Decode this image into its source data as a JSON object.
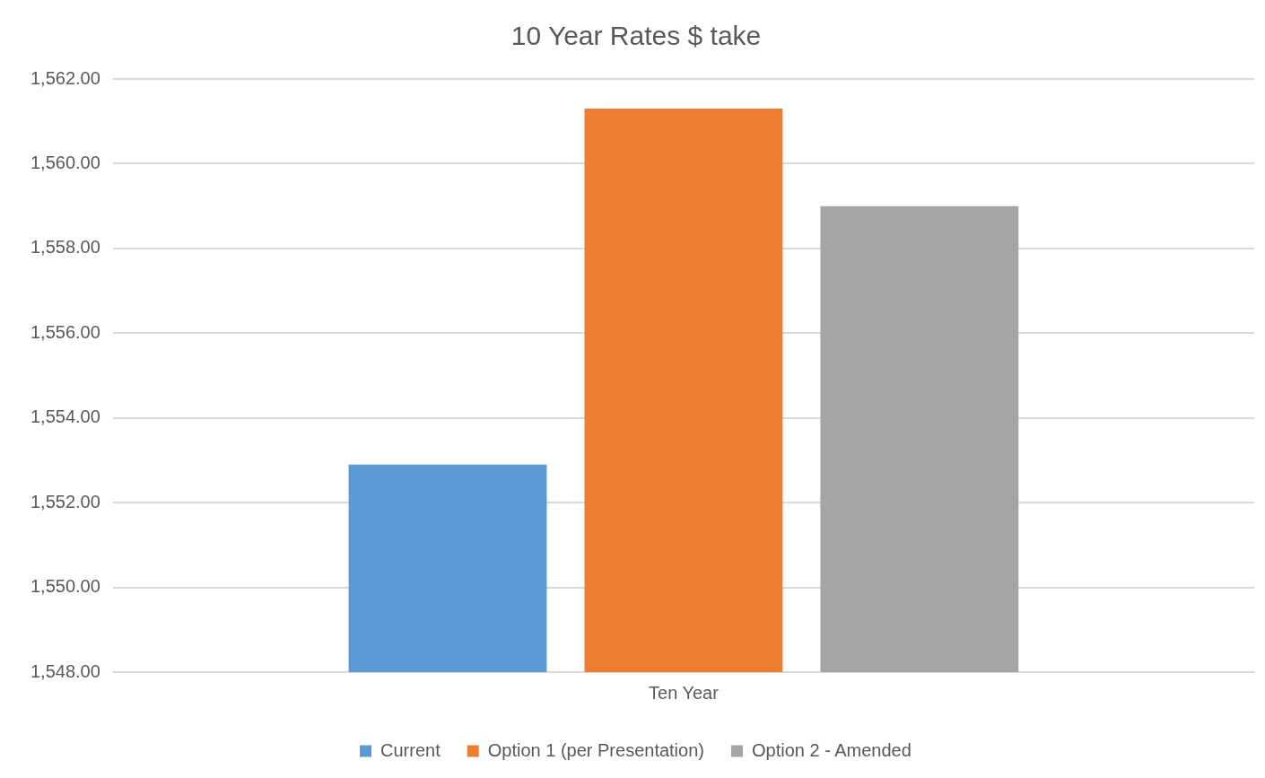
{
  "chart_data": {
    "type": "bar",
    "title": "10 Year Rates $ take",
    "categories": [
      "Ten Year"
    ],
    "series": [
      {
        "name": "Current",
        "color": "#5b9bd5",
        "values": [
          1552.9
        ]
      },
      {
        "name": "Option 1 (per Presentation)",
        "color": "#ed7d31",
        "values": [
          1561.3
        ]
      },
      {
        "name": "Option 2 - Amended",
        "color": "#a5a5a5",
        "values": [
          1559.0
        ]
      }
    ],
    "ylim": [
      1548,
      1562
    ],
    "yticks": [
      {
        "value": 1548,
        "label": "1,548.00"
      },
      {
        "value": 1550,
        "label": "1,550.00"
      },
      {
        "value": 1552,
        "label": "1,552.00"
      },
      {
        "value": 1554,
        "label": "1,554.00"
      },
      {
        "value": 1556,
        "label": "1,556.00"
      },
      {
        "value": 1558,
        "label": "1,558.00"
      },
      {
        "value": 1560,
        "label": "1,560.00"
      },
      {
        "value": 1562,
        "label": "1,562.00"
      }
    ],
    "grid": "y",
    "legend": "bottom"
  }
}
